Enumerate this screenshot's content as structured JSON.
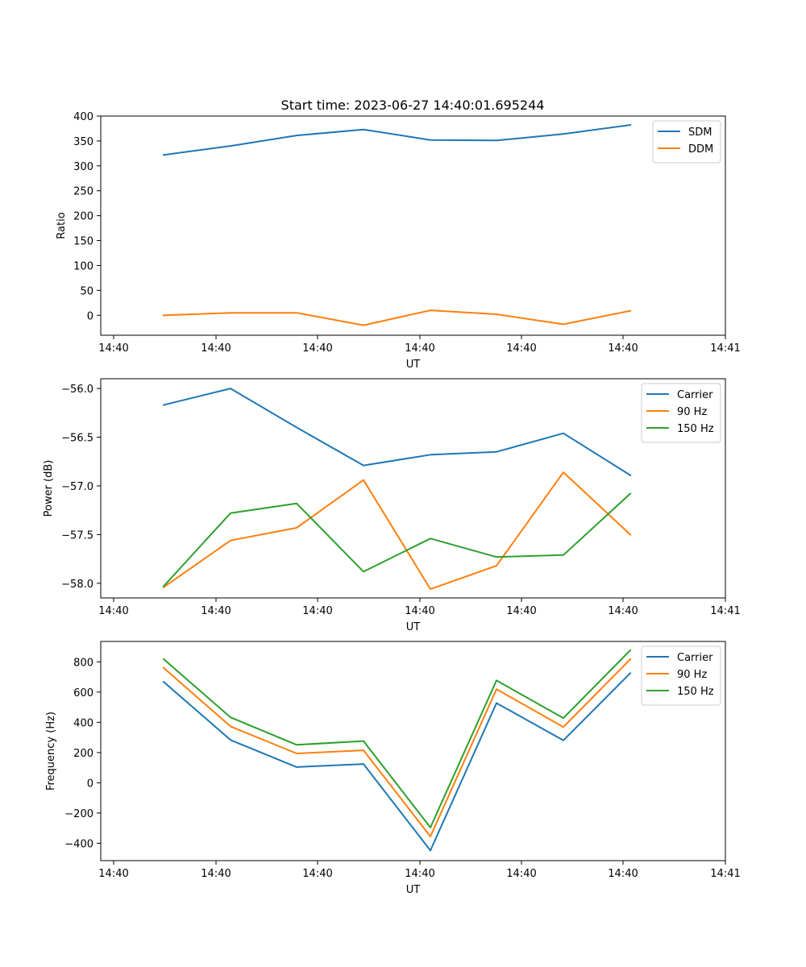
{
  "title": "Start time: 2023-06-27 14:40:01.695244",
  "chart_data": [
    {
      "type": "line",
      "xlabel": "UT",
      "ylabel": "Ratio",
      "x_tick_labels": [
        "14:40",
        "14:40",
        "14:40",
        "14:40",
        "14:40",
        "14:40",
        "14:41"
      ],
      "y_ticks": [
        0,
        50,
        100,
        150,
        200,
        250,
        300,
        350,
        400
      ],
      "ylim": [
        -40,
        400
      ],
      "legend": "top-right",
      "series": [
        {
          "name": "SDM",
          "color": "#1f77b4",
          "values": [
            322,
            340,
            361,
            373,
            352,
            351,
            364,
            382
          ]
        },
        {
          "name": "DDM",
          "color": "#ff7f0e",
          "values": [
            0,
            5,
            5,
            -20,
            10,
            2,
            -18,
            9
          ]
        }
      ]
    },
    {
      "type": "line",
      "xlabel": "UT",
      "ylabel": "Power (dB)",
      "x_tick_labels": [
        "14:40",
        "14:40",
        "14:40",
        "14:40",
        "14:40",
        "14:40",
        "14:41"
      ],
      "y_ticks": [
        -56.0,
        -56.5,
        -57.0,
        -57.5,
        -58.0
      ],
      "y_tick_labels": [
        "−56.0",
        "−56.5",
        "−57.0",
        "−57.5",
        "−58.0"
      ],
      "ylim": [
        -58.15,
        -55.9
      ],
      "legend": "top-right",
      "series": [
        {
          "name": "Carrier",
          "color": "#1f77b4",
          "values": [
            -56.17,
            -56.0,
            -56.4,
            -56.79,
            -56.68,
            -56.65,
            -56.46,
            -56.89
          ]
        },
        {
          "name": "90 Hz",
          "color": "#ff7f0e",
          "values": [
            -58.04,
            -57.56,
            -57.43,
            -56.94,
            -58.06,
            -57.82,
            -56.86,
            -57.5
          ]
        },
        {
          "name": "150 Hz",
          "color": "#2ca02c",
          "values": [
            -58.03,
            -57.28,
            -57.18,
            -57.88,
            -57.54,
            -57.73,
            -57.71,
            -57.08
          ]
        }
      ]
    },
    {
      "type": "line",
      "xlabel": "UT",
      "ylabel": "Frequency (Hz)",
      "x_tick_labels": [
        "14:40",
        "14:40",
        "14:40",
        "14:40",
        "14:40",
        "14:40",
        "14:41"
      ],
      "y_ticks": [
        800,
        600,
        400,
        200,
        0,
        -200,
        -400
      ],
      "y_tick_labels": [
        "800",
        "600",
        "400",
        "200",
        "0",
        "−200",
        "−400"
      ],
      "ylim": [
        -515,
        935
      ],
      "legend": "top-right",
      "series": [
        {
          "name": "Carrier",
          "color": "#1f77b4",
          "values": [
            668,
            283,
            104,
            124,
            -448,
            527,
            281,
            725
          ]
        },
        {
          "name": "90 Hz",
          "color": "#ff7f0e",
          "values": [
            760,
            373,
            194,
            215,
            -355,
            619,
            369,
            817
          ]
        },
        {
          "name": "150 Hz",
          "color": "#2ca02c",
          "values": [
            818,
            433,
            251,
            276,
            -296,
            677,
            428,
            877
          ]
        }
      ]
    }
  ]
}
